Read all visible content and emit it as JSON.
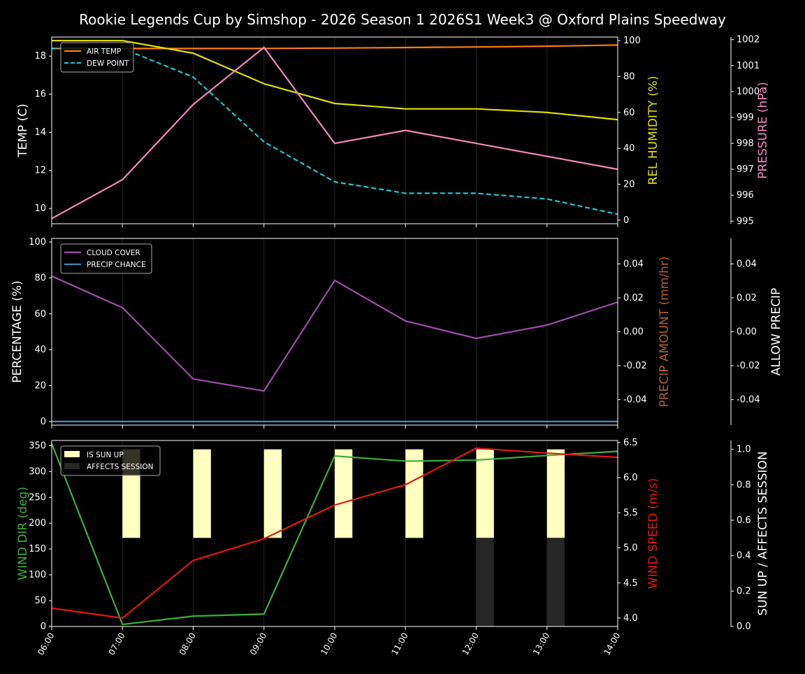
{
  "title": "Rookie Legends Cup by Simshop - 2026 Season 1 2026S1 Week3 @ Oxford Plains Speedway",
  "chart_data": [
    {
      "type": "line",
      "x": [
        "06:00",
        "07:00",
        "08:00",
        "09:00",
        "10:00",
        "11:00",
        "12:00",
        "13:00",
        "14:00"
      ],
      "ylabel": "TEMP (C)",
      "ylim": [
        9.2,
        19
      ],
      "yticks": [
        10,
        12,
        14,
        16,
        18
      ],
      "y2label": "REL HUMIDITY (%)",
      "y2lim": [
        -2,
        102
      ],
      "y2ticks": [
        0,
        20,
        40,
        60,
        80,
        100
      ],
      "y3label": "PRESSURE (hPa)",
      "y3lim": [
        994.9,
        1002.1
      ],
      "y3ticks": [
        995,
        996,
        997,
        998,
        999,
        1000,
        1001,
        1002
      ],
      "legend": "top-left",
      "series": [
        {
          "name": "AIR TEMP",
          "axis": "y",
          "color": "#ff7f0e",
          "dash": false,
          "values": [
            18.4,
            18.4,
            18.4,
            18.4,
            18.42,
            18.45,
            18.48,
            18.52,
            18.58
          ]
        },
        {
          "name": "DEW POINT",
          "axis": "y",
          "color": "#17c8d0",
          "dash": true,
          "values": [
            18.4,
            18.4,
            16.9,
            13.5,
            11.4,
            10.8,
            10.8,
            10.5,
            9.7
          ]
        },
        {
          "axis": "y2",
          "color": "#e0e000",
          "dash": false,
          "values": [
            100,
            100,
            93,
            76,
            65,
            62,
            62,
            60,
            56
          ]
        },
        {
          "axis": "y3",
          "color": "#f088c0",
          "dash": false,
          "values": [
            995.1,
            996.6,
            999.5,
            1001.7,
            998.0,
            998.5,
            998.0,
            997.5,
            997.0
          ]
        }
      ]
    },
    {
      "type": "line",
      "x": [
        "06:00",
        "07:00",
        "08:00",
        "09:00",
        "10:00",
        "11:00",
        "12:00",
        "13:00",
        "14:00"
      ],
      "ylabel": "PERCENTAGE (%)",
      "ylim": [
        -2,
        102
      ],
      "yticks": [
        0,
        20,
        40,
        60,
        80,
        100
      ],
      "y2label": "PRECIP AMOUNT (mm/hr)",
      "y2lim": [
        -0.055,
        0.055
      ],
      "y2ticks": [
        -0.04,
        -0.02,
        0.0,
        0.02,
        0.04
      ],
      "y3label": "ALLOW PRECIP",
      "y3lim": [
        -0.055,
        0.055
      ],
      "y3ticks": [
        -0.04,
        -0.02,
        0.0,
        0.02,
        0.04
      ],
      "legend": "top-left",
      "series": [
        {
          "name": "CLOUD COVER",
          "axis": "y",
          "color": "#9b4fa8",
          "values": [
            81,
            63.4,
            23.7,
            17,
            78.6,
            56,
            46.3,
            53.7,
            66.5
          ]
        },
        {
          "name": "PRECIP CHANCE",
          "axis": "y",
          "color": "#4a86c0",
          "values": [
            0,
            0,
            0,
            0,
            0,
            0,
            0,
            0,
            0
          ]
        }
      ]
    },
    {
      "type": "line",
      "x": [
        "06:00",
        "07:00",
        "08:00",
        "09:00",
        "10:00",
        "11:00",
        "12:00",
        "13:00",
        "14:00"
      ],
      "ylabel": "WIND DIR (deg)",
      "ylim": [
        0,
        360
      ],
      "yticks": [
        0,
        50,
        100,
        150,
        200,
        250,
        300,
        350
      ],
      "y2label": "WIND SPEED (m/s)",
      "y2lim": [
        3.88,
        6.53
      ],
      "y2ticks": [
        4.0,
        4.5,
        5.0,
        5.5,
        6.0,
        6.5
      ],
      "y3label": "SUN UP / AFFECTS SESSION",
      "y3lim": [
        0,
        1.05
      ],
      "y3ticks": [
        0.0,
        0.2,
        0.4,
        0.6,
        0.8,
        1.0
      ],
      "legend": "top-left",
      "bars": [
        {
          "name": "IS SUN UP",
          "color": "#ffffc0",
          "values": [
            0,
            1,
            1,
            1,
            1,
            1,
            1,
            1,
            0
          ]
        },
        {
          "name": "AFFECTS SESSION",
          "color": "#262626",
          "values": [
            0,
            0,
            0,
            0,
            0,
            0,
            1,
            1,
            0
          ]
        }
      ],
      "series": [
        {
          "axis": "y",
          "color": "#3cae3c",
          "values": [
            354,
            4,
            20,
            24,
            330,
            320,
            322,
            331,
            339
          ]
        },
        {
          "axis": "y2",
          "color": "#e01818",
          "values": [
            4.14,
            4.0,
            4.82,
            5.13,
            5.61,
            5.9,
            6.42,
            6.35,
            6.29
          ]
        }
      ]
    }
  ]
}
